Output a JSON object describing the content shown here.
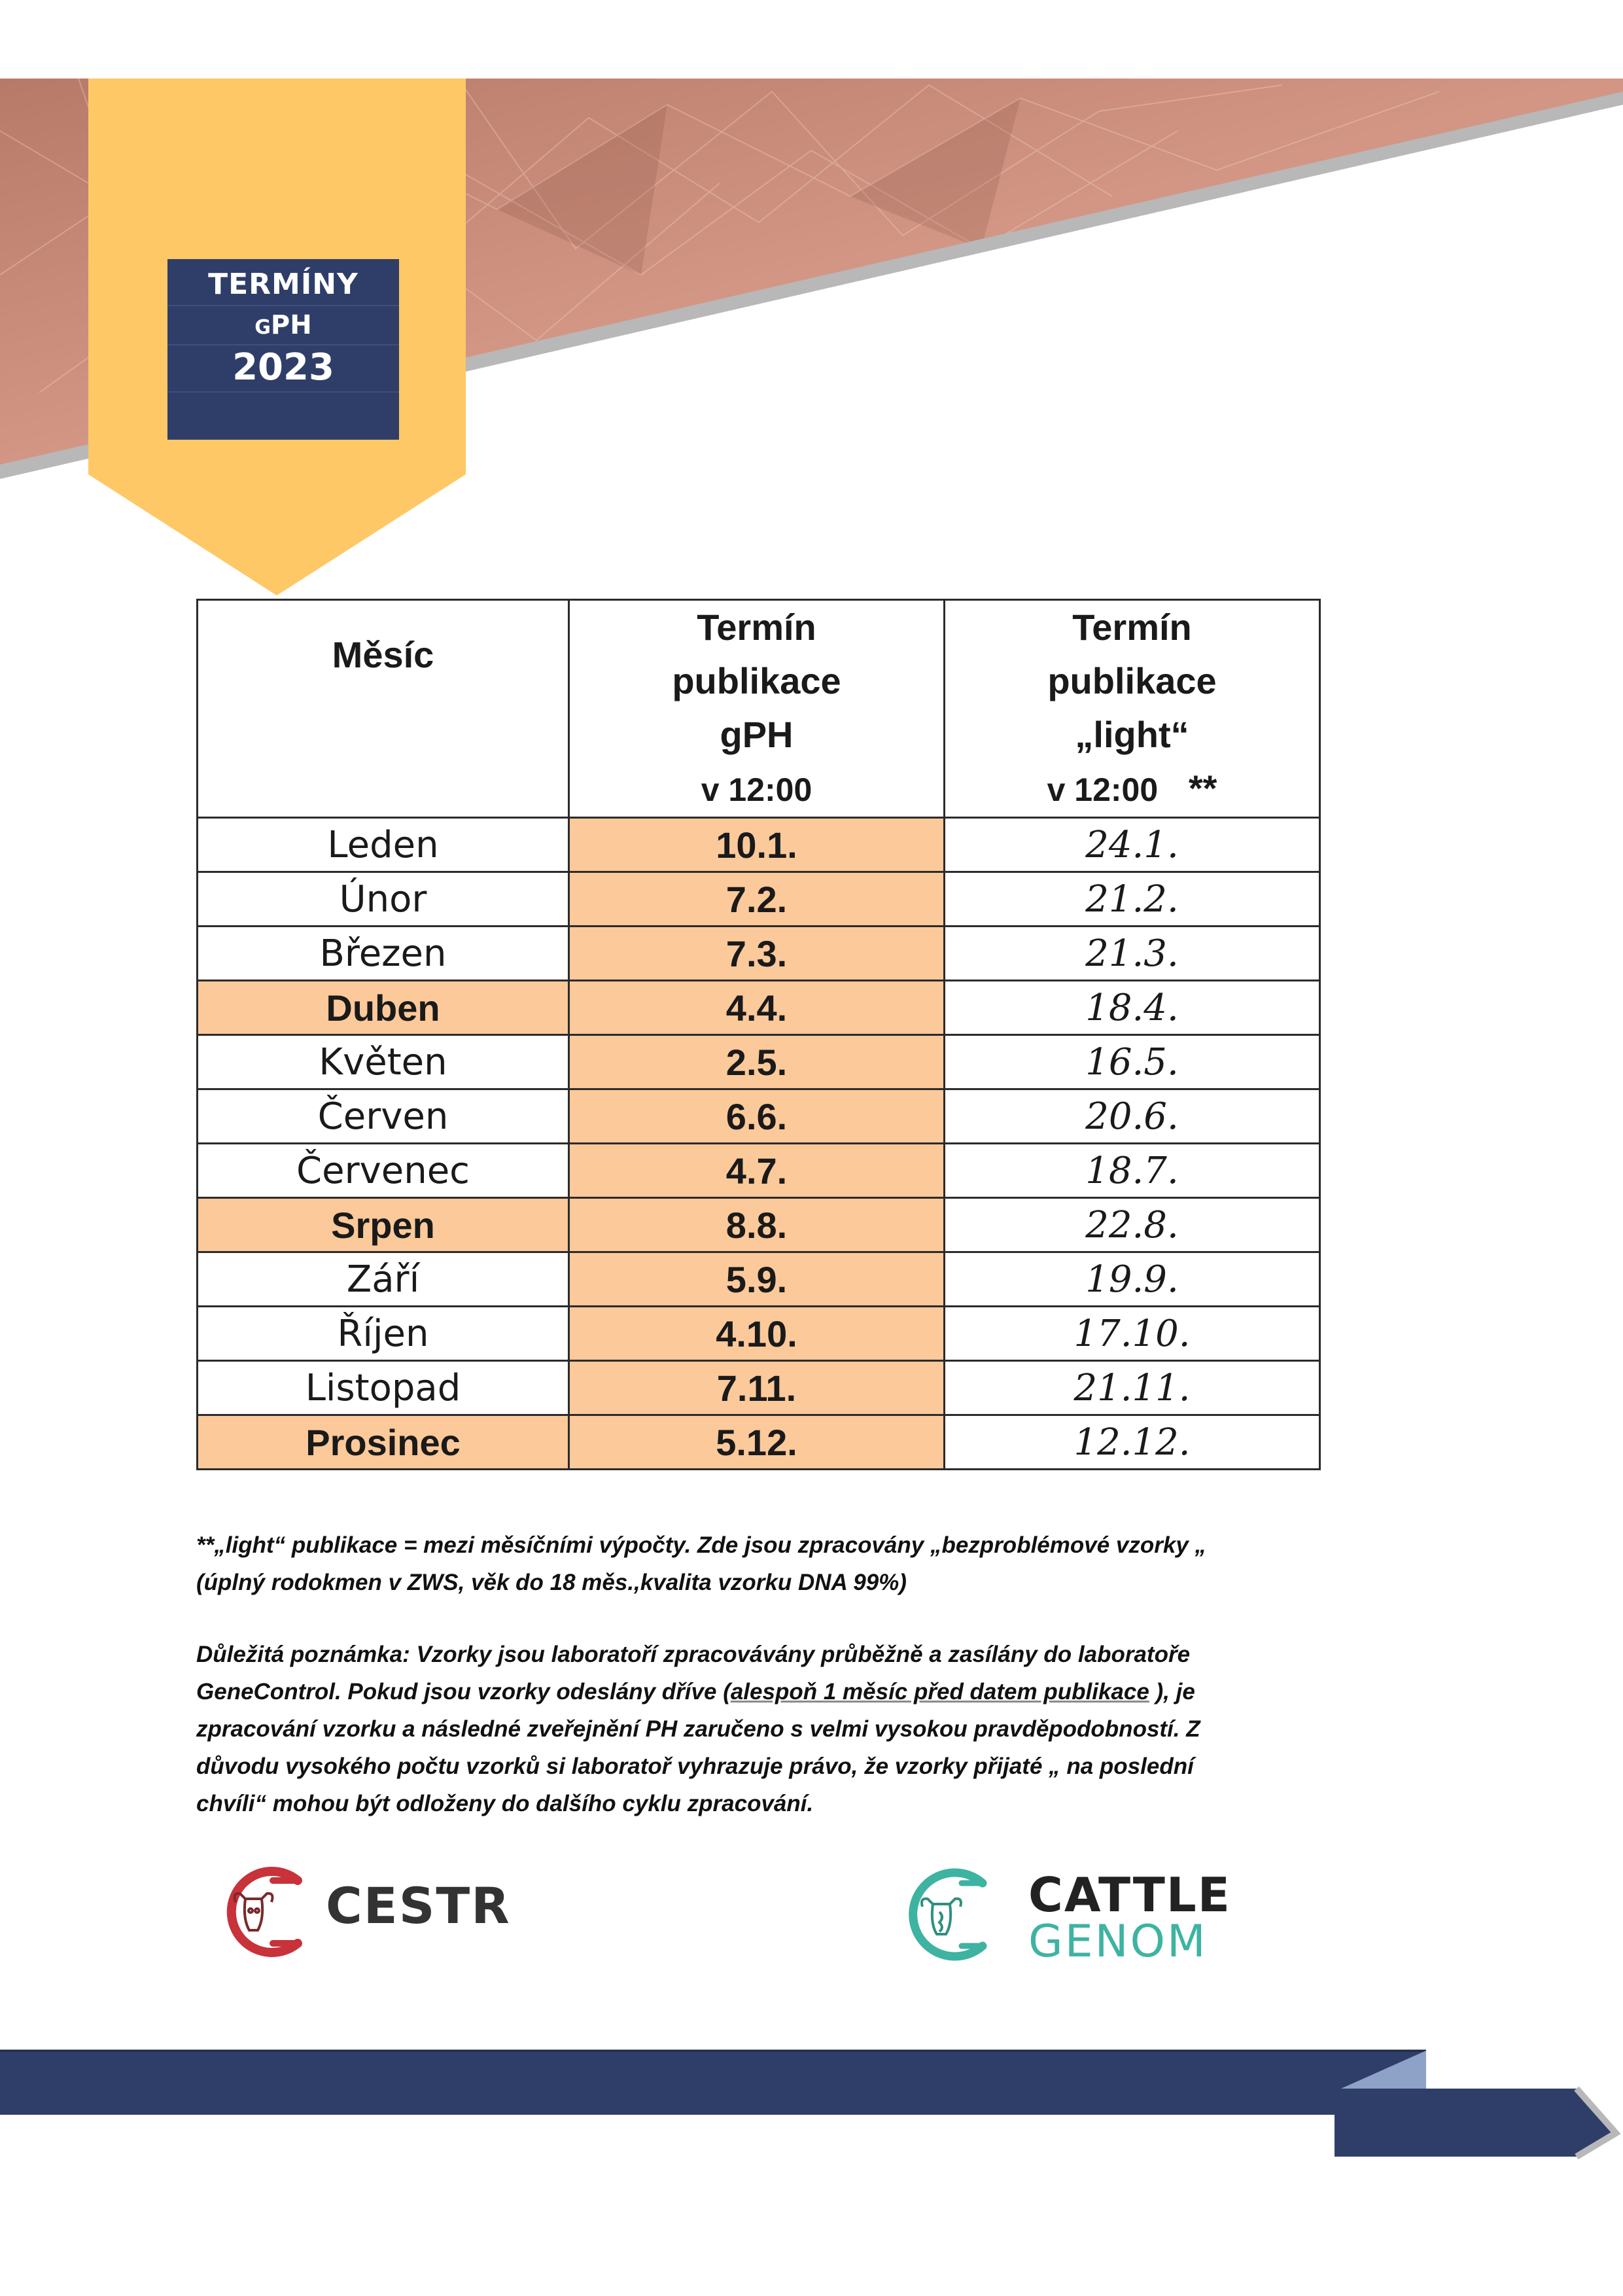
{
  "badge": {
    "line1": "TERMÍNY",
    "line2_small": "G",
    "line2": "PH",
    "line3": "2023"
  },
  "table": {
    "headers": {
      "month": "Měsíc",
      "gph_line1": "Termín",
      "gph_line2": "publikace",
      "gph_line3": "gPH",
      "gph_line4": "v 12:00",
      "light_line1": "Termín",
      "light_line2": "publikace",
      "light_line3": "„light“",
      "light_line4": "v 12:00",
      "light_mark": "**"
    },
    "rows": [
      {
        "month": "Leden",
        "gph": "10.1.",
        "light": "24.1."
      },
      {
        "month": "Únor",
        "gph": "7.2.",
        "light": "21.2."
      },
      {
        "month": "Březen",
        "gph": "7.3.",
        "light": "21.3."
      },
      {
        "month": "Duben",
        "gph": "4.4.",
        "light": "18.4."
      },
      {
        "month": "Květen",
        "gph": "2.5.",
        "light": "16.5."
      },
      {
        "month": "Červen",
        "gph": "6.6.",
        "light": "20.6."
      },
      {
        "month": "Červenec",
        "gph": "4.7.",
        "light": "18.7."
      },
      {
        "month": "Srpen",
        "gph": "8.8.",
        "light": "22.8."
      },
      {
        "month": "Září",
        "gph": "5.9.",
        "light": "19.9."
      },
      {
        "month": "Říjen",
        "gph": "4.10.",
        "light": "17.10."
      },
      {
        "month": "Listopad",
        "gph": "7.11.",
        "light": "21.11."
      },
      {
        "month": "Prosinec",
        "gph": "5.12.",
        "light": "12.12."
      }
    ]
  },
  "notes": {
    "note1": "**„light“  publikace = mezi měsíčními výpočty. Zde jsou zpracovány „bezproblémové vzorky „ (úplný rodokmen v ZWS, věk do 18 měs.,kvalita vzorku DNA 99%)",
    "note2_a": "Důležitá poznámka: Vzorky jsou laboratoří zpracovávány průběžně a zasílány do laboratoře GeneControl. Pokud jsou vzorky odeslány dříve (",
    "note2_link": "alespoň 1 měsíc před datem publikace",
    "note2_b": " ), je zpracování vzorku a následné zveřejnění PH zaručeno s velmi vysokou pravděpodobností. Z důvodu vysokého počtu vzorků  si laboratoř vyhrazuje právo, že vzorky přijaté „ na  poslední chvíli“ mohou být odloženy do dalšího cyklu zpracování."
  },
  "logos": {
    "cestr": "CESTR",
    "cattle": "CATTLE",
    "genom": "GENOM"
  },
  "colors": {
    "navy": "#2f3e69",
    "ribbon": "#fdc865",
    "highlight": "#fcc99a",
    "copper": "#c98a78",
    "cestr_red": "#c8323a",
    "genom_teal": "#3eb3a2"
  }
}
